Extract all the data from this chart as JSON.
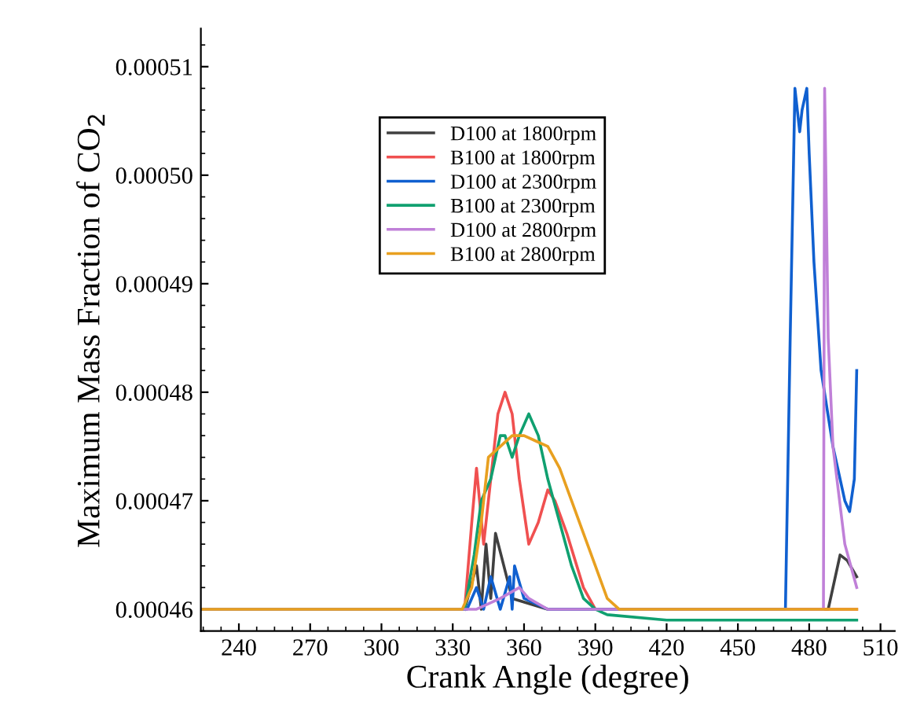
{
  "chart_data": {
    "type": "line",
    "xlabel": "Crank Angle (degree)",
    "ylabel": "Maximum Mass Fraction of CO$_{2}$",
    "xlim": [
      224,
      516
    ],
    "xticks": [
      240,
      270,
      300,
      330,
      360,
      390,
      420,
      450,
      480,
      510
    ],
    "ylim": [
      0.000458,
      0.0005135
    ],
    "yticks": [
      {
        "value": 0.00046,
        "label": "0.00046"
      },
      {
        "value": 0.00047,
        "label": "0.00047"
      },
      {
        "value": 0.00048,
        "label": "0.00048"
      },
      {
        "value": 0.00049,
        "label": "0.00049"
      },
      {
        "value": 0.0005,
        "label": "0.00050"
      },
      {
        "value": 0.00051,
        "label": "0.00051"
      }
    ],
    "grid": false,
    "legend": "top",
    "line_style": "solid",
    "marker": "none",
    "series": [
      {
        "name": "D100 at 1800rpm",
        "color": "#404040",
        "x": [
          335,
          340,
          342,
          344,
          346,
          348,
          355,
          370,
          488,
          490,
          493,
          496,
          500
        ],
        "values": [
          0.00046,
          0.000464,
          0.00046,
          0.000466,
          0.000461,
          0.000467,
          0.000461,
          0.00046,
          0.00046,
          0.000462,
          0.000465,
          0.0004645,
          0.000463
        ]
      },
      {
        "name": "B100 at 1800rpm",
        "color": "#f05050",
        "x": [
          224,
          335,
          338,
          340,
          343,
          346,
          349,
          352,
          355,
          358,
          362,
          366,
          370,
          373,
          378,
          385,
          390,
          395,
          500
        ],
        "values": [
          0.00046,
          0.00046,
          0.000468,
          0.000473,
          0.000466,
          0.000472,
          0.000478,
          0.00048,
          0.000478,
          0.000472,
          0.000466,
          0.000468,
          0.000471,
          0.00047,
          0.000467,
          0.000462,
          0.00046,
          0.00046,
          0.00046
        ]
      },
      {
        "name": "D100 at 2300rpm",
        "color": "#1060d0",
        "x": [
          224,
          336,
          340,
          343,
          346,
          350,
          354,
          355,
          356,
          360,
          370,
          470,
          472,
          474,
          476,
          477,
          479,
          480,
          482,
          485,
          490,
          495,
          497,
          499,
          500
        ],
        "values": [
          0.00046,
          0.00046,
          0.000462,
          0.00046,
          0.000463,
          0.00046,
          0.000463,
          0.00046,
          0.000464,
          0.000461,
          0.00046,
          0.00046,
          0.000485,
          0.000508,
          0.000504,
          0.000506,
          0.000508,
          0.000502,
          0.000492,
          0.000482,
          0.000475,
          0.00047,
          0.000469,
          0.000472,
          0.000482
        ]
      },
      {
        "name": "B100 at 2300rpm",
        "color": "#10a070",
        "x": [
          224,
          335,
          339,
          342,
          346,
          350,
          352,
          355,
          358,
          362,
          366,
          370,
          375,
          380,
          385,
          390,
          395,
          420,
          500
        ],
        "values": [
          0.00046,
          0.00046,
          0.000465,
          0.00047,
          0.000472,
          0.000476,
          0.000476,
          0.000474,
          0.000476,
          0.000478,
          0.000476,
          0.000472,
          0.000468,
          0.000464,
          0.000461,
          0.00046,
          0.0004595,
          0.000459,
          0.000459
        ]
      },
      {
        "name": "D100 at 2800rpm",
        "color": "#c080d8",
        "x": [
          224,
          340,
          350,
          358,
          362,
          370,
          380,
          486,
          486.5,
          488,
          490,
          495,
          500
        ],
        "values": [
          0.00046,
          0.00046,
          0.000461,
          0.000462,
          0.000461,
          0.00046,
          0.00046,
          0.00046,
          0.000508,
          0.000485,
          0.000475,
          0.000466,
          0.000462
        ]
      },
      {
        "name": "B100 at 2800rpm",
        "color": "#e8a020",
        "x": [
          224,
          334,
          338,
          342,
          345,
          350,
          355,
          360,
          365,
          370,
          375,
          380,
          385,
          390,
          395,
          400,
          500
        ],
        "values": [
          0.00046,
          0.00046,
          0.000462,
          0.000468,
          0.000474,
          0.000475,
          0.000476,
          0.000476,
          0.0004755,
          0.000475,
          0.000473,
          0.00047,
          0.000467,
          0.000464,
          0.000461,
          0.00046,
          0.00046
        ]
      }
    ]
  }
}
